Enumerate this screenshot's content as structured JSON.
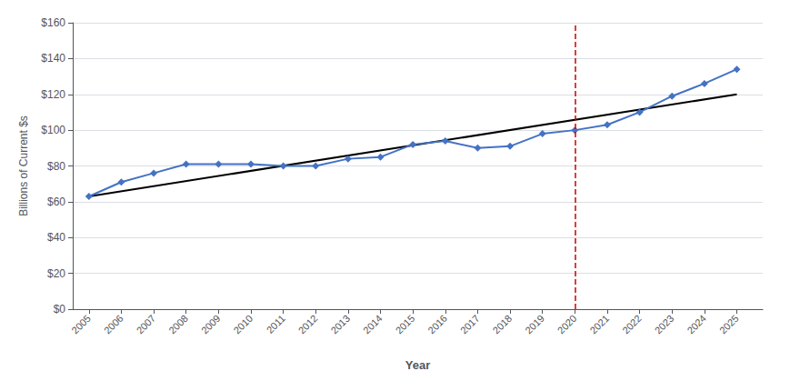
{
  "chart_data": {
    "type": "line",
    "xlabel": "Year",
    "ylabel": "Billions of Current $s",
    "x": [
      2005,
      2006,
      2007,
      2008,
      2009,
      2010,
      2011,
      2012,
      2013,
      2014,
      2015,
      2016,
      2017,
      2018,
      2019,
      2020,
      2021,
      2022,
      2023,
      2024,
      2025
    ],
    "values": [
      63,
      71,
      76,
      81,
      81,
      81,
      80,
      80,
      84,
      85,
      92,
      94,
      90,
      91,
      98,
      100,
      103,
      110,
      119,
      126,
      134
    ],
    "color": "#4472C4",
    "marker": "diamond",
    "trendline": {
      "x": [
        2005,
        2025
      ],
      "values": [
        63,
        120
      ],
      "color": "#000000"
    },
    "vline": {
      "x": 2020,
      "color": "#CC0000",
      "line_style": "dashed"
    },
    "xlim": [
      2004.5,
      2025.8
    ],
    "xticks": [
      2005,
      2006,
      2007,
      2008,
      2009,
      2010,
      2011,
      2012,
      2013,
      2014,
      2015,
      2016,
      2017,
      2018,
      2019,
      2020,
      2021,
      2022,
      2023,
      2024,
      2025
    ],
    "ylim": [
      0,
      160
    ],
    "yticks": [
      {
        "value": 0,
        "label": "$0"
      },
      {
        "value": 20,
        "label": "$20"
      },
      {
        "value": 40,
        "label": "$40"
      },
      {
        "value": 60,
        "label": "$60"
      },
      {
        "value": 80,
        "label": "$80"
      },
      {
        "value": 100,
        "label": "$100"
      },
      {
        "value": 120,
        "label": "$120"
      },
      {
        "value": 140,
        "label": "$140"
      },
      {
        "value": 160,
        "label": "$160"
      }
    ],
    "grid": true
  }
}
